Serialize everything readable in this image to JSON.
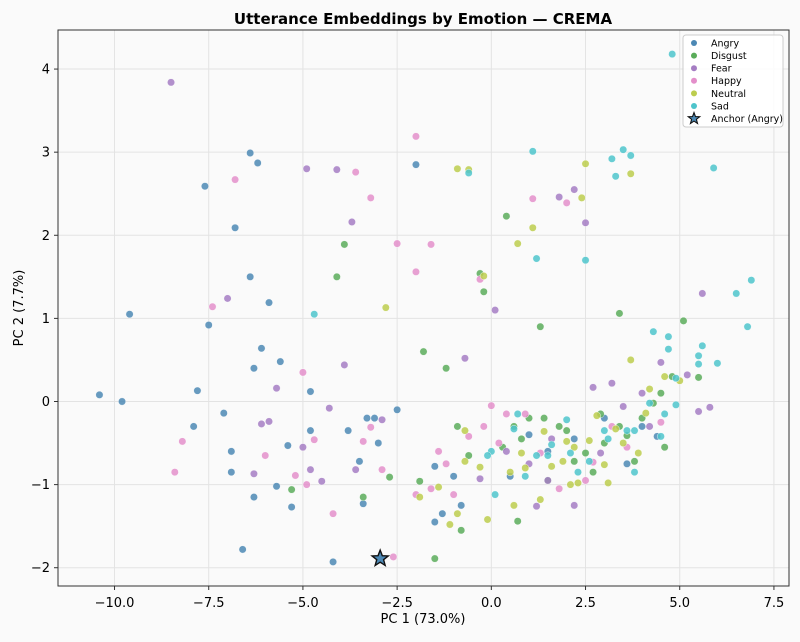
{
  "chart_data": {
    "type": "scatter",
    "title": "Utterance Embeddings by Emotion — CREMA",
    "xlabel": "PC 1 (73.0%)",
    "ylabel": "PC 2 (7.7%)",
    "xlim": [
      -11.5,
      7.9
    ],
    "ylim": [
      -2.22,
      4.47
    ],
    "xticks": [
      -10.0,
      -7.5,
      -5.0,
      -2.5,
      0.0,
      2.5,
      5.0,
      7.5
    ],
    "xtick_labels": [
      "−10.0",
      "−7.5",
      "−5.0",
      "−2.5",
      "0.0",
      "2.5",
      "5.0",
      "7.5"
    ],
    "yticks": [
      -2,
      -1,
      0,
      1,
      2,
      3,
      4
    ],
    "ytick_labels": [
      "−2",
      "−1",
      "0",
      "1",
      "2",
      "3",
      "4"
    ],
    "grid": true,
    "legend_position": "top-right",
    "series": [
      {
        "name": "Angry",
        "color": "#4c88b4",
        "points": [
          [
            -10.4,
            0.08
          ],
          [
            -9.8,
            0.0
          ],
          [
            -9.6,
            1.05
          ],
          [
            -7.8,
            0.13
          ],
          [
            -7.9,
            -0.3
          ],
          [
            -7.1,
            -0.14
          ],
          [
            -6.9,
            -0.6
          ],
          [
            -6.9,
            -0.85
          ],
          [
            -6.3,
            0.4
          ],
          [
            -6.3,
            -1.15
          ],
          [
            -6.1,
            0.64
          ],
          [
            -5.7,
            -1.02
          ],
          [
            -5.6,
            0.48
          ],
          [
            -5.3,
            -1.27
          ],
          [
            -5.4,
            -0.53
          ],
          [
            -4.8,
            -0.35
          ],
          [
            -4.8,
            0.12
          ],
          [
            -4.2,
            -1.93
          ],
          [
            -3.8,
            -0.35
          ],
          [
            -3.5,
            -0.72
          ],
          [
            -3.4,
            -1.23
          ],
          [
            -3.3,
            -0.2
          ],
          [
            -3.1,
            -0.2
          ],
          [
            -3.0,
            -0.5
          ],
          [
            -2.5,
            -0.1
          ],
          [
            -1.5,
            -0.78
          ],
          [
            -1.5,
            -1.45
          ],
          [
            -1.0,
            -0.9
          ],
          [
            -1.3,
            -1.35
          ],
          [
            -7.6,
            2.59
          ],
          [
            -6.8,
            2.09
          ],
          [
            -6.4,
            2.99
          ],
          [
            -6.2,
            2.87
          ],
          [
            -6.4,
            1.5
          ],
          [
            -5.9,
            1.19
          ],
          [
            -7.5,
            0.92
          ],
          [
            -6.6,
            -1.78
          ],
          [
            -2.0,
            2.85
          ],
          [
            -0.8,
            -1.25
          ],
          [
            0.5,
            -0.9
          ],
          [
            1.5,
            -0.6
          ],
          [
            2.2,
            -0.45
          ],
          [
            3.0,
            -0.2
          ],
          [
            4.0,
            -0.3
          ],
          [
            4.4,
            -0.42
          ],
          [
            1.0,
            -0.4
          ],
          [
            3.6,
            -0.75
          ]
        ]
      },
      {
        "name": "Disgust",
        "color": "#5aac5a",
        "points": [
          [
            -3.9,
            1.89
          ],
          [
            -4.1,
            1.5
          ],
          [
            -1.8,
            0.6
          ],
          [
            -1.2,
            0.4
          ],
          [
            -0.9,
            -0.3
          ],
          [
            -0.3,
            1.54
          ],
          [
            -0.2,
            1.32
          ],
          [
            0.4,
            2.23
          ],
          [
            0.8,
            -0.45
          ],
          [
            1.0,
            -0.2
          ],
          [
            1.3,
            0.9
          ],
          [
            1.4,
            -0.2
          ],
          [
            2.0,
            -0.35
          ],
          [
            2.5,
            -0.62
          ],
          [
            2.7,
            -0.85
          ],
          [
            3.0,
            -0.5
          ],
          [
            3.4,
            1.06
          ],
          [
            3.4,
            -0.3
          ],
          [
            3.8,
            -0.72
          ],
          [
            4.0,
            -0.2
          ],
          [
            4.3,
            -0.02
          ],
          [
            4.5,
            0.1
          ],
          [
            4.8,
            0.3
          ],
          [
            5.1,
            0.97
          ],
          [
            5.5,
            0.29
          ],
          [
            -3.4,
            -1.15
          ],
          [
            -2.7,
            -0.91
          ],
          [
            -1.5,
            -1.89
          ],
          [
            -0.8,
            -1.55
          ],
          [
            0.7,
            -1.44
          ],
          [
            1.5,
            -0.95
          ],
          [
            2.2,
            -0.72
          ],
          [
            0.3,
            -0.55
          ],
          [
            0.6,
            -0.3
          ],
          [
            -0.6,
            -0.65
          ],
          [
            -1.9,
            -0.96
          ],
          [
            -5.3,
            -1.06
          ],
          [
            1.8,
            -0.3
          ],
          [
            4.6,
            -0.55
          ],
          [
            3.6,
            -0.41
          ],
          [
            2.9,
            -0.15
          ]
        ]
      },
      {
        "name": "Fear",
        "color": "#a57dc3",
        "points": [
          [
            -8.5,
            3.84
          ],
          [
            -4.9,
            2.8
          ],
          [
            -4.1,
            2.79
          ],
          [
            -3.7,
            2.16
          ],
          [
            -7.0,
            1.24
          ],
          [
            -5.7,
            0.16
          ],
          [
            -5.0,
            -0.55
          ],
          [
            -4.8,
            -0.82
          ],
          [
            -4.5,
            -0.96
          ],
          [
            -4.3,
            -0.08
          ],
          [
            -3.6,
            -0.82
          ],
          [
            -3.9,
            0.44
          ],
          [
            -6.3,
            -0.87
          ],
          [
            -6.1,
            -0.27
          ],
          [
            -5.9,
            -0.24
          ],
          [
            -0.3,
            -0.93
          ],
          [
            0.4,
            -0.6
          ],
          [
            1.0,
            -0.75
          ],
          [
            1.5,
            -0.95
          ],
          [
            1.8,
            2.46
          ],
          [
            2.2,
            2.55
          ],
          [
            2.5,
            2.15
          ],
          [
            2.7,
            0.17
          ],
          [
            3.2,
            0.22
          ],
          [
            3.5,
            -0.06
          ],
          [
            4.0,
            0.1
          ],
          [
            4.5,
            0.47
          ],
          [
            5.2,
            0.32
          ],
          [
            5.5,
            -0.12
          ],
          [
            5.6,
            1.3
          ],
          [
            5.8,
            -0.07
          ],
          [
            2.9,
            -0.62
          ],
          [
            -0.7,
            0.52
          ],
          [
            0.1,
            1.1
          ],
          [
            4.2,
            -0.3
          ],
          [
            2.2,
            -1.25
          ],
          [
            -2.9,
            -0.22
          ],
          [
            1.2,
            -1.26
          ],
          [
            1.6,
            -0.45
          ]
        ]
      },
      {
        "name": "Happy",
        "color": "#e38fca",
        "points": [
          [
            -8.4,
            -0.85
          ],
          [
            -8.2,
            -0.48
          ],
          [
            -7.4,
            1.14
          ],
          [
            -6.8,
            2.67
          ],
          [
            -6.0,
            -0.65
          ],
          [
            -5.2,
            -0.89
          ],
          [
            -4.7,
            -0.46
          ],
          [
            -4.2,
            -1.35
          ],
          [
            -3.6,
            2.76
          ],
          [
            -3.2,
            2.45
          ],
          [
            -3.4,
            -0.48
          ],
          [
            -3.2,
            -0.31
          ],
          [
            -2.9,
            -0.82
          ],
          [
            -2.5,
            1.9
          ],
          [
            -2.0,
            1.56
          ],
          [
            -2.0,
            3.19
          ],
          [
            -1.6,
            1.89
          ],
          [
            -1.6,
            -1.05
          ],
          [
            -1.0,
            -1.12
          ],
          [
            -0.6,
            -0.42
          ],
          [
            -0.3,
            1.47
          ],
          [
            0.4,
            -0.15
          ],
          [
            1.1,
            2.44
          ],
          [
            2.0,
            2.39
          ],
          [
            2.7,
            -0.73
          ],
          [
            3.6,
            -0.55
          ],
          [
            -5.0,
            0.35
          ],
          [
            -2.6,
            -1.87
          ],
          [
            -1.4,
            -0.6
          ],
          [
            0.2,
            -0.5
          ],
          [
            1.3,
            -0.62
          ],
          [
            1.8,
            -1.05
          ],
          [
            2.5,
            -0.95
          ],
          [
            3.2,
            -0.3
          ],
          [
            4.5,
            -0.25
          ],
          [
            -4.9,
            -1.0
          ],
          [
            -2.0,
            -1.12
          ],
          [
            0.9,
            -0.15
          ],
          [
            -0.2,
            -0.3
          ],
          [
            0.0,
            -0.05
          ],
          [
            -1.2,
            -0.75
          ]
        ]
      },
      {
        "name": "Neutral",
        "color": "#bccd4e",
        "points": [
          [
            -2.8,
            1.13
          ],
          [
            -0.9,
            2.8
          ],
          [
            -0.6,
            2.79
          ],
          [
            -0.2,
            1.51
          ],
          [
            0.7,
            1.9
          ],
          [
            1.1,
            2.09
          ],
          [
            2.4,
            2.45
          ],
          [
            2.5,
            2.86
          ],
          [
            3.7,
            2.74
          ],
          [
            -0.7,
            -0.35
          ],
          [
            -0.3,
            -0.79
          ],
          [
            0.8,
            -0.62
          ],
          [
            1.4,
            -0.36
          ],
          [
            1.9,
            -0.72
          ],
          [
            2.3,
            -0.98
          ],
          [
            2.6,
            -0.47
          ],
          [
            3.0,
            -0.76
          ],
          [
            3.3,
            -0.33
          ],
          [
            3.7,
            0.5
          ],
          [
            4.1,
            -0.14
          ],
          [
            4.6,
            0.3
          ],
          [
            5.0,
            0.25
          ],
          [
            -1.4,
            -1.03
          ],
          [
            -0.9,
            -1.35
          ],
          [
            0.6,
            -1.25
          ],
          [
            1.3,
            -1.18
          ],
          [
            2.1,
            -1.0
          ],
          [
            3.1,
            -0.98
          ],
          [
            3.9,
            -0.62
          ],
          [
            2.8,
            -0.17
          ],
          [
            0.9,
            -0.8
          ],
          [
            -0.1,
            -1.42
          ],
          [
            -1.1,
            -1.48
          ],
          [
            0.5,
            -0.85
          ],
          [
            2.0,
            -0.48
          ],
          [
            4.2,
            0.15
          ],
          [
            -0.7,
            -0.72
          ],
          [
            -1.9,
            -1.15
          ],
          [
            1.6,
            -0.78
          ],
          [
            3.5,
            -0.5
          ],
          [
            2.2,
            -0.55
          ]
        ]
      },
      {
        "name": "Sad",
        "color": "#4ec4cb",
        "points": [
          [
            -4.7,
            1.05
          ],
          [
            -0.6,
            2.75
          ],
          [
            1.1,
            3.01
          ],
          [
            1.2,
            1.72
          ],
          [
            2.5,
            1.7
          ],
          [
            3.2,
            2.92
          ],
          [
            3.3,
            2.71
          ],
          [
            3.5,
            3.03
          ],
          [
            3.7,
            2.96
          ],
          [
            4.8,
            4.18
          ],
          [
            5.9,
            2.81
          ],
          [
            4.3,
            0.84
          ],
          [
            4.7,
            0.63
          ],
          [
            4.7,
            0.78
          ],
          [
            5.5,
            0.55
          ],
          [
            5.6,
            0.67
          ],
          [
            5.5,
            0.45
          ],
          [
            6.0,
            0.46
          ],
          [
            6.5,
            1.3
          ],
          [
            6.8,
            0.9
          ],
          [
            6.9,
            1.46
          ],
          [
            0.0,
            -0.6
          ],
          [
            0.6,
            -0.33
          ],
          [
            1.2,
            -0.65
          ],
          [
            1.6,
            -0.52
          ],
          [
            2.1,
            -0.62
          ],
          [
            2.6,
            -0.72
          ],
          [
            3.1,
            -0.45
          ],
          [
            3.6,
            -0.35
          ],
          [
            3.8,
            -0.35
          ],
          [
            4.2,
            -0.02
          ],
          [
            4.6,
            -0.15
          ],
          [
            4.9,
            -0.04
          ],
          [
            0.1,
            -1.12
          ],
          [
            0.9,
            -0.9
          ],
          [
            1.5,
            -0.65
          ],
          [
            2.3,
            -0.85
          ],
          [
            3.8,
            -0.85
          ],
          [
            -0.1,
            -0.65
          ],
          [
            0.7,
            -0.15
          ],
          [
            4.9,
            0.28
          ],
          [
            2.0,
            -0.22
          ],
          [
            4.5,
            -0.42
          ],
          [
            3.0,
            -0.35
          ]
        ]
      },
      {
        "name": "Anchor (Angry)",
        "color": "#4c88b4",
        "marker": "star",
        "points": [
          [
            -2.95,
            -1.89
          ]
        ]
      }
    ]
  }
}
